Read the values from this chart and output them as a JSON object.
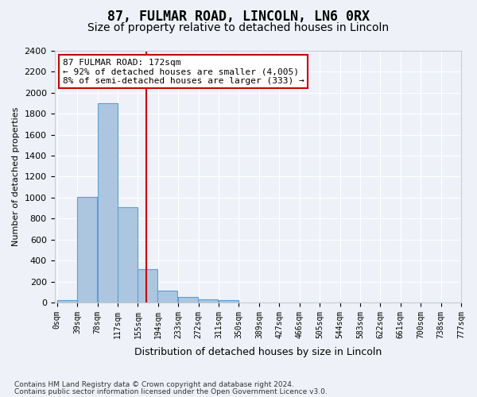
{
  "title1": "87, FULMAR ROAD, LINCOLN, LN6 0RX",
  "title2": "Size of property relative to detached houses in Lincoln",
  "xlabel": "Distribution of detached houses by size in Lincoln",
  "ylabel": "Number of detached properties",
  "bins": [
    "0sqm",
    "39sqm",
    "78sqm",
    "117sqm",
    "155sqm",
    "194sqm",
    "233sqm",
    "272sqm",
    "311sqm",
    "350sqm",
    "389sqm",
    "427sqm",
    "466sqm",
    "505sqm",
    "544sqm",
    "583sqm",
    "622sqm",
    "661sqm",
    "700sqm",
    "738sqm",
    "777sqm"
  ],
  "bar_left_edges": [
    0,
    39,
    78,
    117,
    155,
    194,
    233,
    272,
    311,
    350,
    389,
    427,
    466,
    505,
    544,
    583,
    622,
    661,
    700,
    738
  ],
  "bar_widths": [
    39,
    39,
    39,
    39,
    39,
    39,
    39,
    39,
    39,
    39,
    39,
    39,
    39,
    39,
    39,
    39,
    39,
    39,
    39,
    39
  ],
  "bar_heights": [
    20,
    1010,
    1900,
    910,
    315,
    110,
    55,
    30,
    20,
    0,
    0,
    0,
    0,
    0,
    0,
    0,
    0,
    0,
    0,
    0
  ],
  "bar_color": "#adc6e0",
  "bar_edgecolor": "#5a9fd4",
  "property_size": 172,
  "vline_color": "#cc0000",
  "ylim": [
    0,
    2400
  ],
  "yticks": [
    0,
    200,
    400,
    600,
    800,
    1000,
    1200,
    1400,
    1600,
    1800,
    2000,
    2200,
    2400
  ],
  "annotation_text1": "87 FULMAR ROAD: 172sqm",
  "annotation_text2": "← 92% of detached houses are smaller (4,005)",
  "annotation_text3": "8% of semi-detached houses are larger (333) →",
  "annotation_box_color": "#ffffff",
  "annotation_box_edgecolor": "#cc0000",
  "footer1": "Contains HM Land Registry data © Crown copyright and database right 2024.",
  "footer2": "Contains public sector information licensed under the Open Government Licence v3.0.",
  "bg_color": "#eef2f8",
  "grid_color": "#ffffff",
  "title1_fontsize": 12,
  "title2_fontsize": 10
}
